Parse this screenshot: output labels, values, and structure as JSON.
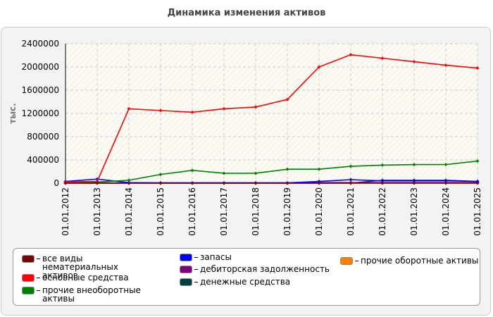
{
  "chart_data": {
    "type": "line",
    "title": "Динамика изменения активов",
    "y_label": "тыс.",
    "categories": [
      "01.01.2012",
      "01.01.2013",
      "01.01.2014",
      "01.01.2015",
      "01.01.2016",
      "01.01.2017",
      "01.01.2018",
      "01.01.2019",
      "01.01.2020",
      "01.01.2021",
      "01.01.2022",
      "01.01.2023",
      "01.01.2024",
      "01.01.2025"
    ],
    "ylim": [
      0,
      2400000
    ],
    "yticks": [
      0,
      400000,
      800000,
      1200000,
      1600000,
      2000000,
      2400000
    ],
    "grid": true,
    "series": [
      {
        "name": "все виды нематериальных активов",
        "color": "#800000",
        "values": [
          0,
          0,
          0,
          0,
          0,
          0,
          0,
          0,
          0,
          0,
          0,
          0,
          0,
          0
        ]
      },
      {
        "name": "основные средства",
        "color": "#ff0000",
        "values": [
          20000,
          30000,
          1280000,
          1250000,
          1220000,
          1280000,
          1310000,
          1440000,
          2000000,
          2210000,
          2150000,
          2090000,
          2030000,
          1980000
        ]
      },
      {
        "name": "прочие внеоборотные активы",
        "color": "#008000",
        "values": [
          10000,
          20000,
          50000,
          150000,
          220000,
          170000,
          170000,
          240000,
          240000,
          290000,
          310000,
          320000,
          320000,
          380000
        ]
      },
      {
        "name": "запасы",
        "color": "#0000ff",
        "values": [
          30000,
          70000,
          10000,
          5000,
          5000,
          5000,
          5000,
          5000,
          30000,
          60000,
          40000,
          40000,
          40000,
          30000
        ]
      },
      {
        "name": "дебиторская задолженность",
        "color": "#800080",
        "values": [
          5000,
          5000,
          5000,
          5000,
          5000,
          5000,
          5000,
          5000,
          10000,
          10000,
          10000,
          10000,
          10000,
          10000
        ]
      },
      {
        "name": "денежные средства",
        "color": "#004040",
        "values": [
          0,
          0,
          0,
          0,
          0,
          0,
          0,
          0,
          0,
          0,
          50000,
          50000,
          50000,
          30000
        ]
      },
      {
        "name": "прочие оборотные активы",
        "color": "#ff8000",
        "values": [
          0,
          0,
          0,
          0,
          0,
          0,
          0,
          0,
          0,
          0,
          0,
          0,
          0,
          0
        ]
      }
    ]
  }
}
